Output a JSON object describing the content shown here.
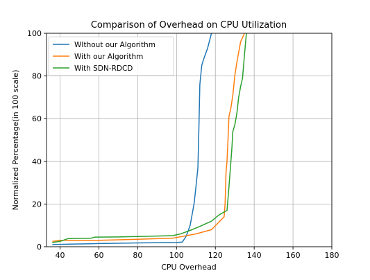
{
  "chart_data": {
    "type": "line",
    "title": "Comparison of Overhead on CPU Utilization",
    "xlabel": "CPU Overhead",
    "ylabel": "Normalized Percentage(in 100 scale)",
    "xlim": [
      33,
      180
    ],
    "ylim": [
      0,
      100
    ],
    "xticks": [
      40,
      60,
      80,
      100,
      120,
      140,
      160,
      180
    ],
    "yticks": [
      0,
      20,
      40,
      60,
      80,
      100
    ],
    "grid": true,
    "legend_position": "top-left",
    "series": [
      {
        "name": "WIthout our Algorithm",
        "color": "#1f77b4",
        "x": [
          36,
          45,
          55,
          60,
          80,
          100,
          103,
          105,
          107,
          109,
          110,
          111,
          111.5,
          112,
          113,
          114,
          116,
          118
        ],
        "y": [
          1,
          1.2,
          1.4,
          1.5,
          1.8,
          2,
          2.2,
          5,
          10,
          20,
          28,
          37,
          55,
          76,
          85,
          88,
          93,
          100
        ]
      },
      {
        "name": "With our Algorithm",
        "color": "#ff7f0e",
        "x": [
          36,
          40,
          60,
          80,
          98,
          104,
          110,
          118,
          124.5,
          125,
          125.5,
          126,
          126.5,
          127,
          128,
          129,
          130,
          131,
          132,
          133,
          135
        ],
        "y": [
          2.5,
          3,
          3,
          3.5,
          4,
          5,
          6,
          8,
          14,
          20,
          35,
          40,
          50,
          61,
          65,
          71,
          80,
          86,
          91,
          96,
          100
        ]
      },
      {
        "name": "With SDN-RDCD",
        "color": "#2ca02c",
        "x": [
          36,
          40,
          44,
          56,
          58,
          70,
          80,
          98,
          102,
          108,
          112,
          118,
          122,
          126,
          127,
          128,
          128.5,
          129,
          130,
          131,
          132,
          133,
          134,
          135,
          136
        ],
        "y": [
          2,
          2.5,
          3.8,
          4,
          4.5,
          4.6,
          4.8,
          5.2,
          6,
          8,
          9.5,
          12,
          15,
          17,
          28,
          40,
          46,
          54,
          57,
          62,
          70,
          75,
          79,
          90,
          100
        ]
      }
    ]
  }
}
